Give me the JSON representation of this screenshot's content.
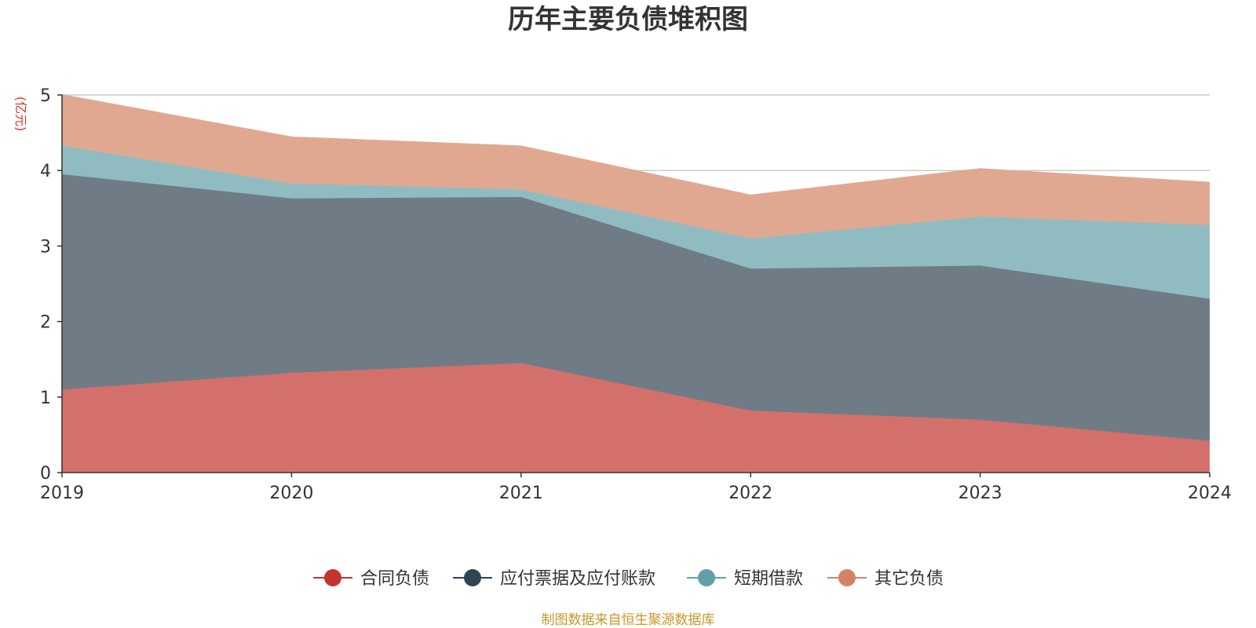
{
  "chart_data": {
    "type": "area",
    "stacked": true,
    "title": "历年主要负债堆积图",
    "unit": "(亿元)",
    "x": [
      "2019",
      "2020",
      "2021",
      "2022",
      "2023",
      "2024"
    ],
    "ylim": [
      0,
      5
    ],
    "yticks": [
      0,
      1,
      2,
      3,
      4,
      5
    ],
    "grid": true,
    "legend_position": "bottom",
    "series": [
      {
        "name": "合同负债",
        "color": "#c23531",
        "area_color": "#d4706c",
        "values": [
          1.1,
          1.32,
          1.45,
          0.82,
          0.7,
          0.42
        ]
      },
      {
        "name": "应付票据及应付账款",
        "color": "#2f4554",
        "area_color": "#6f7c86",
        "values": [
          2.85,
          2.31,
          2.2,
          1.88,
          2.04,
          1.88
        ]
      },
      {
        "name": "短期借款",
        "color": "#61a0a8",
        "area_color": "#90bcc1",
        "values": [
          0.38,
          0.2,
          0.1,
          0.4,
          0.65,
          0.98
        ]
      },
      {
        "name": "其它负债",
        "color": "#d48265",
        "area_color": "#e1a891",
        "values": [
          0.67,
          0.61,
          0.57,
          0.57,
          0.63,
          0.56
        ]
      }
    ]
  },
  "footer": {
    "source": "制图数据来自恒生聚源数据库"
  }
}
